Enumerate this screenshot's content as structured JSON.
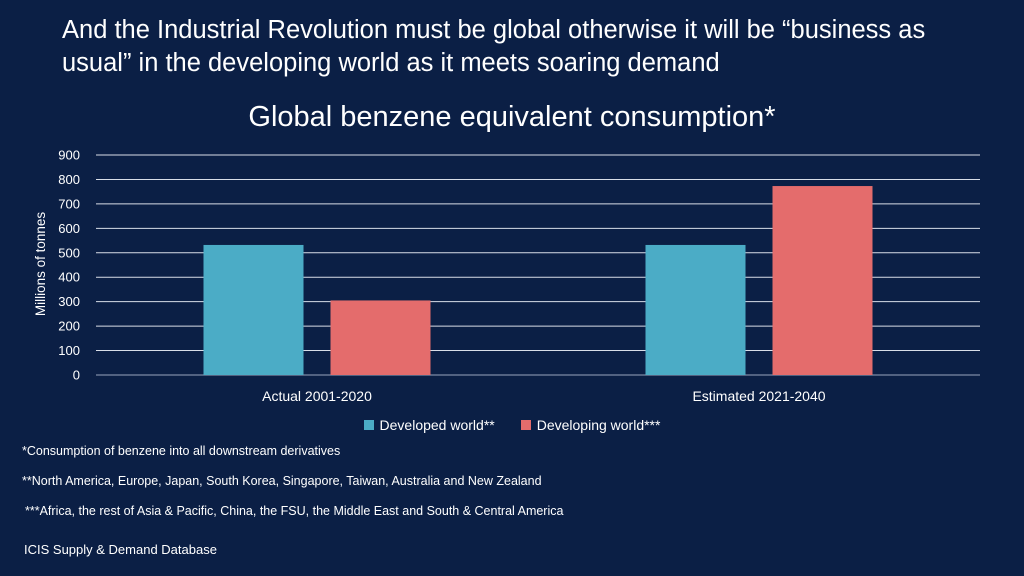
{
  "headline": "And the Industrial Revolution must be global otherwise it will be “business as usual” in the developing world as it meets soaring demand",
  "chart_data": {
    "type": "bar",
    "title": "Global benzene equivalent consumption*",
    "ylabel": "Millions of tonnes",
    "xlabel": "",
    "ylim": [
      0,
      900
    ],
    "yticks": [
      0,
      100,
      200,
      300,
      400,
      500,
      600,
      700,
      800,
      900
    ],
    "grid": true,
    "legend_position": "bottom",
    "categories": [
      "Actual 2001-2020",
      "Estimated 2021-2040"
    ],
    "series": [
      {
        "name": "Developed world**",
        "color": "#4bacc6",
        "values": [
          532,
          532
        ]
      },
      {
        "name": "Developing world***",
        "color": "#e46c6c",
        "values": [
          305,
          773
        ]
      }
    ]
  },
  "footnotes": {
    "f1": "*Consumption of benzene  into all downstream derivatives",
    "f2": "**North America, Europe, Japan, South Korea, Singapore, Taiwan, Australia and New Zealand",
    "f3": "***Africa, the rest of Asia & Pacific, China, the FSU, the Middle East and South & Central America"
  },
  "source": "ICIS Supply & Demand Database"
}
